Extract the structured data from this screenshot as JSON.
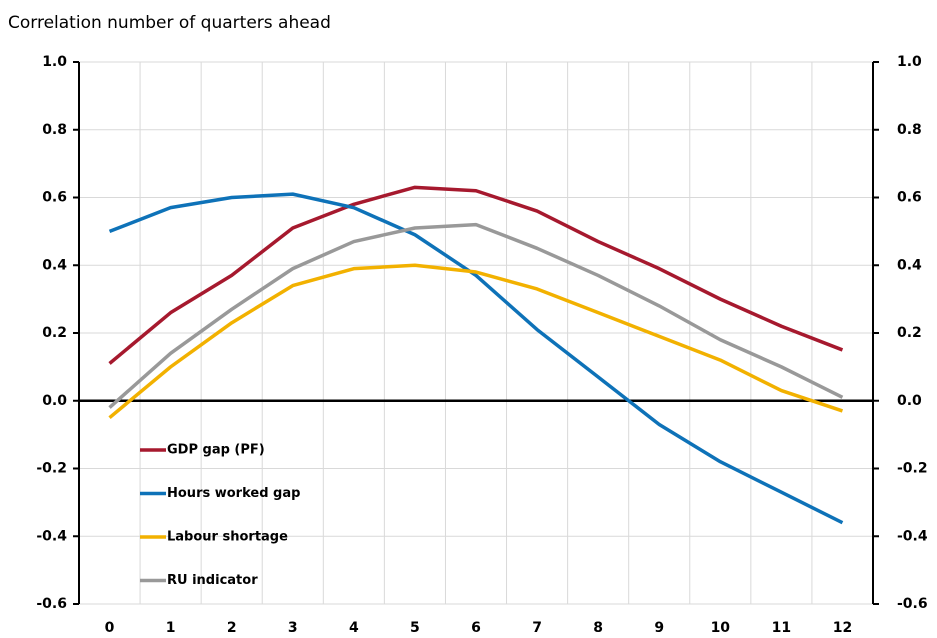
{
  "chart_data": {
    "type": "line",
    "title": "Correlation number of quarters ahead",
    "categories": [
      "0",
      "1",
      "2",
      "3",
      "4",
      "5",
      "6",
      "7",
      "8",
      "9",
      "10",
      "11",
      "12"
    ],
    "series": [
      {
        "name": "GDP gap (PF)",
        "color": "#a6192e",
        "values": [
          0.11,
          0.26,
          0.37,
          0.51,
          0.58,
          0.63,
          0.62,
          0.56,
          0.47,
          0.39,
          0.3,
          0.22,
          0.15
        ]
      },
      {
        "name": "Hours worked gap",
        "color": "#0e72b8",
        "values": [
          0.5,
          0.57,
          0.6,
          0.61,
          0.57,
          0.49,
          0.37,
          0.21,
          0.07,
          -0.07,
          -0.18,
          -0.27,
          -0.36
        ]
      },
      {
        "name": "Labour shortage",
        "color": "#f2b100",
        "values": [
          -0.05,
          0.1,
          0.23,
          0.34,
          0.39,
          0.4,
          0.38,
          0.33,
          0.26,
          0.19,
          0.12,
          0.03,
          -0.03
        ]
      },
      {
        "name": "RU indicator",
        "color": "#999999",
        "values": [
          -0.02,
          0.14,
          0.27,
          0.39,
          0.47,
          0.51,
          0.52,
          0.45,
          0.37,
          0.28,
          0.18,
          0.1,
          0.01
        ]
      }
    ],
    "ylim": [
      -0.6,
      1.0
    ],
    "yticks": [
      -0.6,
      -0.4,
      -0.2,
      {
        "value": 0,
        "label": "0.0"
      },
      0.2,
      0.4,
      0.6,
      0.8,
      {
        "value": 1,
        "label": "1.0"
      }
    ],
    "y2lim": [
      -0.6,
      1.0
    ],
    "y2ticks": [
      -0.6,
      -0.4,
      -0.2,
      {
        "value": 0,
        "label": "0.0"
      },
      0.2,
      0.4,
      0.6,
      0.8,
      {
        "value": 1,
        "label": "1.0"
      }
    ],
    "grid": true,
    "legend": "lower left"
  }
}
